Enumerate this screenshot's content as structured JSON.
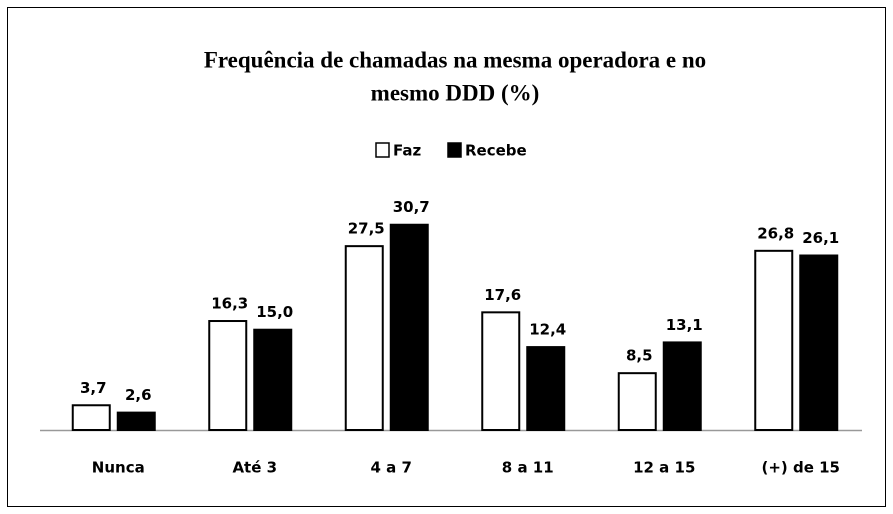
{
  "chart_data": {
    "type": "bar",
    "title": [
      "Frequência de chamadas na mesma  operadora e no",
      "mesmo DDD (%)"
    ],
    "categories": [
      "Nunca",
      "Até 3",
      "4 a 7",
      "8 a 11",
      "12 a 15",
      "(+) de 15"
    ],
    "series": [
      {
        "name": "Faz",
        "color": "#ffffff",
        "values": [
          3.7,
          16.3,
          27.5,
          17.6,
          8.5,
          26.8
        ],
        "value_labels": [
          "3,7",
          "16,3",
          "27,5",
          "17,6",
          "8,5",
          "26,8"
        ]
      },
      {
        "name": "Recebe",
        "color": "#000000",
        "values": [
          2.6,
          15.0,
          30.7,
          12.4,
          13.1,
          26.1
        ],
        "value_labels": [
          "2,6",
          "15,0",
          "30,7",
          "12,4",
          "13,1",
          "26,1"
        ]
      }
    ],
    "ylim": [
      0,
      35
    ],
    "legend": "top"
  }
}
